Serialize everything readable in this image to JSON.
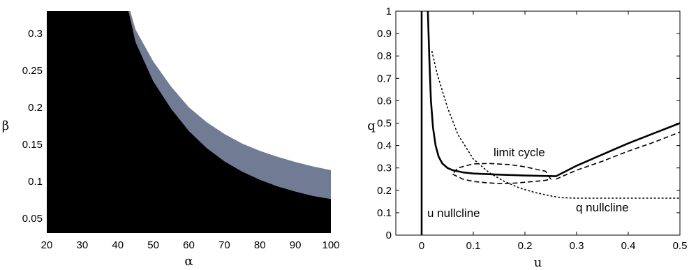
{
  "chart_data": [
    {
      "type": "area",
      "title": "",
      "xlabel": "α",
      "ylabel": "β",
      "xlim": [
        20,
        100
      ],
      "ylim": [
        0.03,
        0.33
      ],
      "x_ticks": [
        "20",
        "30",
        "40",
        "50",
        "60",
        "70",
        "80",
        "90",
        "100"
      ],
      "y_ticks": [
        "0.05",
        "0.1",
        "0.15",
        "0.2",
        "0.25",
        "0.3"
      ],
      "colors": {
        "lower_region": "#000000",
        "band_region": "#717b93",
        "upper_region": "#ffffff"
      },
      "series": [
        {
          "role": "lower_boundary",
          "x": [
            43,
            45,
            50,
            55,
            60,
            65,
            70,
            75,
            80,
            85,
            90,
            95,
            100
          ],
          "y": [
            0.33,
            0.288,
            0.235,
            0.198,
            0.168,
            0.145,
            0.127,
            0.113,
            0.102,
            0.093,
            0.086,
            0.08,
            0.076
          ]
        },
        {
          "role": "upper_boundary",
          "x": [
            43.5,
            45,
            50,
            55,
            60,
            65,
            70,
            75,
            80,
            85,
            90,
            95,
            100
          ],
          "y": [
            0.33,
            0.305,
            0.262,
            0.228,
            0.2,
            0.18,
            0.164,
            0.151,
            0.141,
            0.133,
            0.126,
            0.12,
            0.115
          ]
        }
      ]
    },
    {
      "type": "line",
      "title": "",
      "xlabel": "u",
      "ylabel": "q",
      "xlim": [
        -0.05,
        0.5
      ],
      "ylim": [
        0,
        1
      ],
      "x_ticks": [
        "0",
        "0.1",
        "0.2",
        "0.3",
        "0.4",
        "0.5"
      ],
      "y_ticks": [
        "0",
        "0.1",
        "0.2",
        "0.3",
        "0.4",
        "0.5",
        "0.6",
        "0.7",
        "0.8",
        "0.9",
        "1"
      ],
      "annotations": [
        "limit cycle",
        "u nullcline",
        "q nullcline"
      ],
      "series": [
        {
          "role": "u_nullcline_vertical",
          "style": "solid-thick",
          "x": [
            0.0,
            0.0
          ],
          "y": [
            0,
            1
          ]
        },
        {
          "role": "u_nullcline_curve",
          "style": "solid-thick",
          "x": [
            0.012,
            0.015,
            0.018,
            0.022,
            0.027,
            0.033,
            0.04,
            0.05,
            0.06,
            0.08,
            0.1,
            0.15,
            0.2,
            0.26,
            0.3,
            0.35,
            0.4,
            0.45,
            0.5
          ],
          "y": [
            1.0,
            0.78,
            0.6,
            0.48,
            0.4,
            0.35,
            0.32,
            0.3,
            0.29,
            0.28,
            0.275,
            0.27,
            0.266,
            0.263,
            0.31,
            0.36,
            0.41,
            0.455,
            0.5
          ]
        },
        {
          "role": "q_nullcline",
          "style": "dotted",
          "x": [
            0.02,
            0.03,
            0.05,
            0.07,
            0.1,
            0.13,
            0.16,
            0.19,
            0.22,
            0.25,
            0.27,
            0.3,
            0.4,
            0.5
          ],
          "y": [
            0.82,
            0.72,
            0.57,
            0.45,
            0.34,
            0.28,
            0.24,
            0.21,
            0.19,
            0.175,
            0.167,
            0.165,
            0.165,
            0.165
          ]
        },
        {
          "role": "limit_cycle",
          "style": "dashed",
          "x": [
            0.06,
            0.08,
            0.1,
            0.12,
            0.15,
            0.18,
            0.2,
            0.22,
            0.24,
            0.25,
            0.24,
            0.2,
            0.17,
            0.13,
            0.1,
            0.07,
            0.06
          ],
          "y": [
            0.272,
            0.25,
            0.24,
            0.235,
            0.23,
            0.232,
            0.236,
            0.24,
            0.245,
            0.25,
            0.285,
            0.305,
            0.315,
            0.32,
            0.318,
            0.3,
            0.272
          ]
        },
        {
          "role": "trajectory_outer",
          "style": "dashed",
          "x": [
            0.26,
            0.3,
            0.35,
            0.4,
            0.45,
            0.5
          ],
          "y": [
            0.25,
            0.29,
            0.33,
            0.375,
            0.415,
            0.46
          ]
        }
      ]
    }
  ]
}
